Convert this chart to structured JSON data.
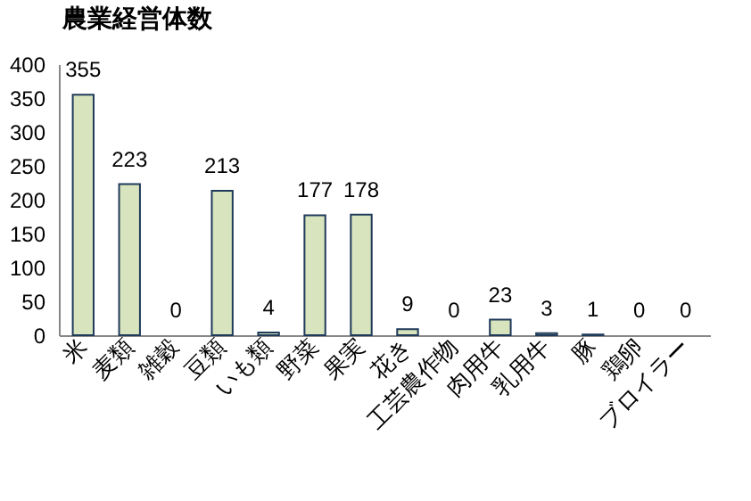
{
  "chart_data": {
    "type": "bar",
    "title": "農業経営体数",
    "categories": [
      "米",
      "麦類",
      "雑穀",
      "豆類",
      "いも類",
      "野菜",
      "果実",
      "花き",
      "工芸農作物",
      "肉用牛",
      "乳用牛",
      "豚",
      "鶏卵",
      "ブロイラー"
    ],
    "values": [
      355,
      223,
      0,
      213,
      4,
      177,
      178,
      9,
      0,
      23,
      3,
      1,
      0,
      0
    ],
    "color": "#d7e4bd",
    "ylim": [
      0,
      400
    ],
    "yticks": [
      0,
      50,
      100,
      150,
      200,
      250,
      300,
      350,
      400
    ],
    "grid": false,
    "data_labels": true
  }
}
